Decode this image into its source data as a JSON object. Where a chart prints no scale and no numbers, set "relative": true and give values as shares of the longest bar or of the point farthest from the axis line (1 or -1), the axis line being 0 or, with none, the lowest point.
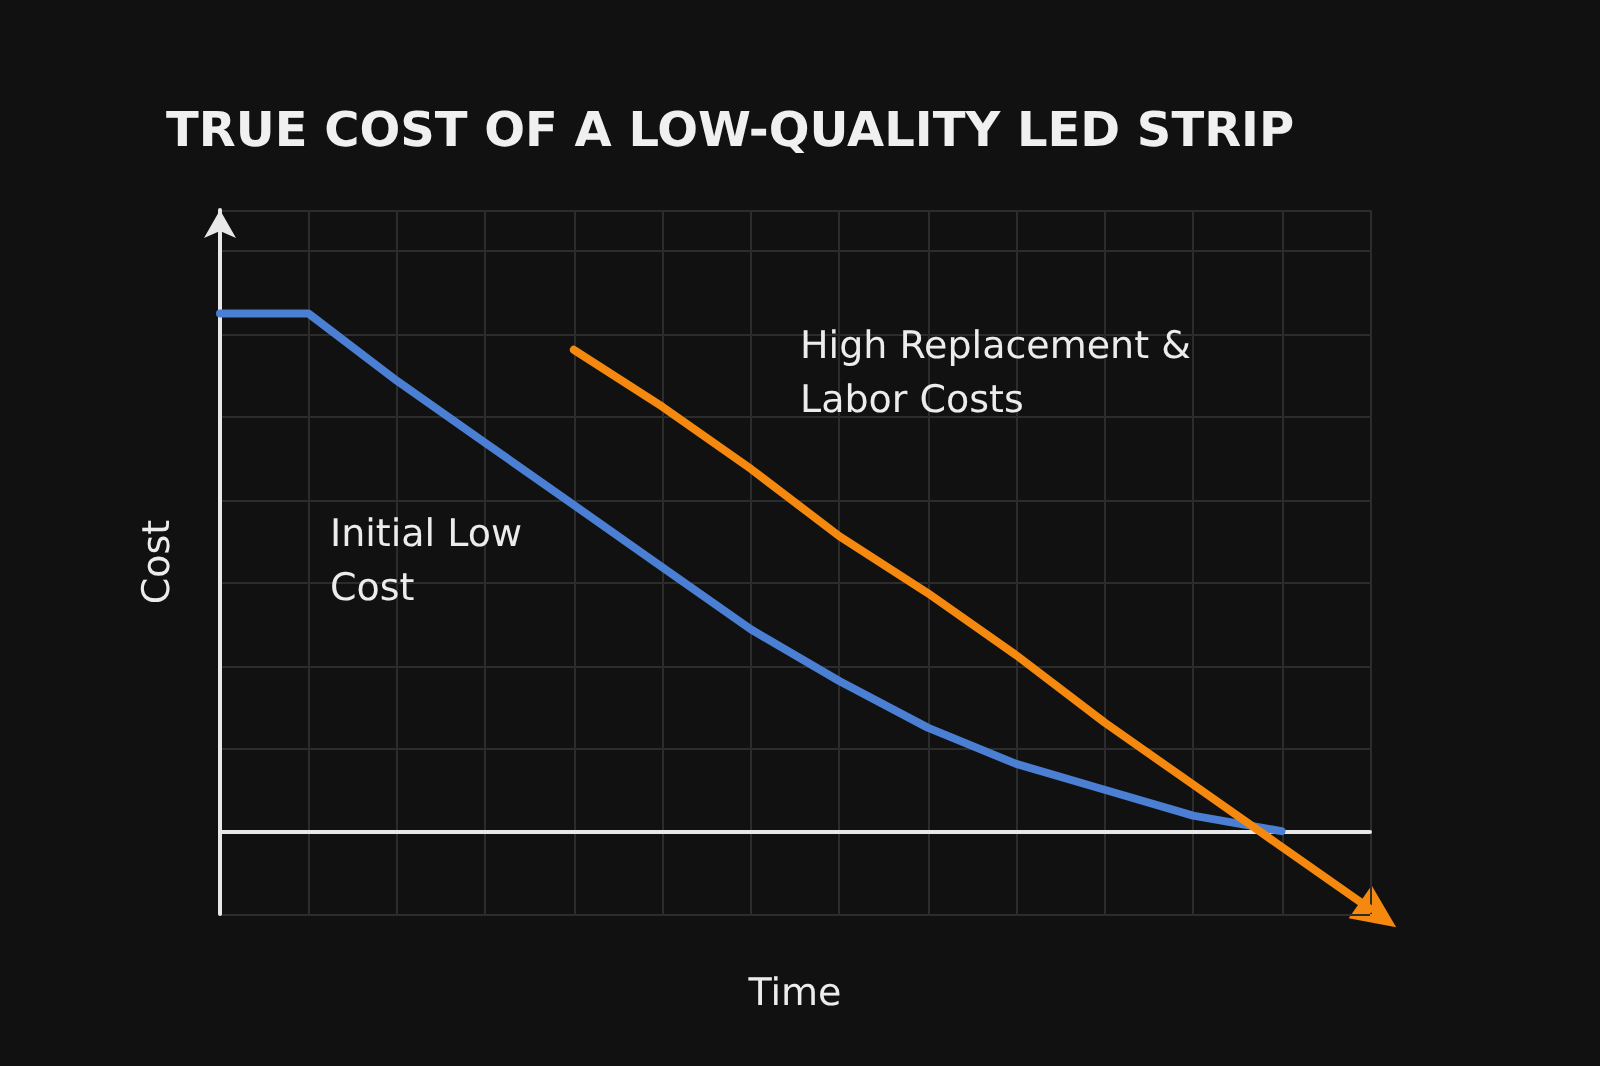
{
  "chart_data": {
    "type": "line",
    "title": "TRUE COST OF A LOW-QUALITY LED STRIP",
    "xlabel": "Time",
    "ylabel": "Cost",
    "relative": true,
    "grid": true,
    "marker": "none",
    "line_style": "solid",
    "categories": [
      null,
      null,
      null,
      null,
      null,
      null,
      null,
      null,
      null,
      null,
      null,
      null,
      null,
      null
    ],
    "series": [
      {
        "color": "#4a7fd4",
        "values": [
          1,
          1,
          0.87,
          0.75,
          0.63,
          0.51,
          0.39,
          0.29,
          0.2,
          0.13,
          0.08,
          0.03,
          0,
          null
        ]
      },
      {
        "color": "#f5890f",
        "values": [
          null,
          null,
          null,
          null,
          0.93,
          0.82,
          0.7,
          0.57,
          0.46,
          0.34,
          0.21,
          0.09,
          -0.03,
          -0.15
        ]
      }
    ],
    "annotations": [
      "Initial Low Cost",
      "High Replacement & Labor Costs"
    ]
  }
}
